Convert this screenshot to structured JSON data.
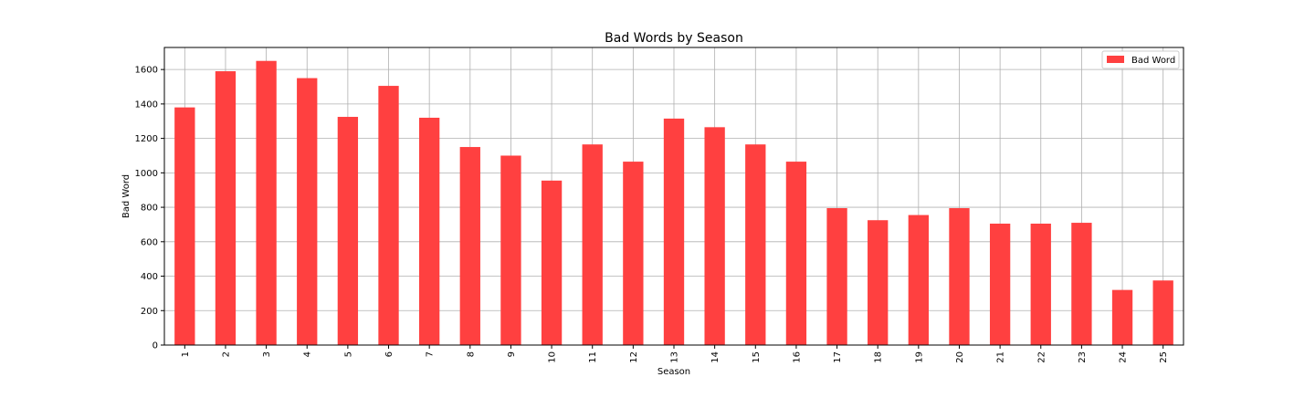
{
  "chart_data": {
    "type": "bar",
    "title": "Bad Words by Season",
    "xlabel": "Season",
    "ylabel": "Bad Word",
    "categories": [
      "1",
      "2",
      "3",
      "4",
      "5",
      "6",
      "7",
      "8",
      "9",
      "10",
      "11",
      "12",
      "13",
      "14",
      "15",
      "16",
      "17",
      "18",
      "19",
      "20",
      "21",
      "22",
      "23",
      "24",
      "25"
    ],
    "series": [
      {
        "name": "Bad Word",
        "color": "#ff4040",
        "values": [
          1380,
          1590,
          1650,
          1550,
          1325,
          1505,
          1320,
          1150,
          1100,
          955,
          1165,
          1065,
          1315,
          1265,
          1165,
          1065,
          795,
          725,
          755,
          795,
          705,
          705,
          710,
          320,
          375
        ]
      }
    ],
    "ylim": [
      0,
      1728
    ],
    "yticks": [
      0,
      200,
      400,
      600,
      800,
      1000,
      1200,
      1400,
      1600
    ],
    "grid": true,
    "legend_position": "top-right"
  }
}
